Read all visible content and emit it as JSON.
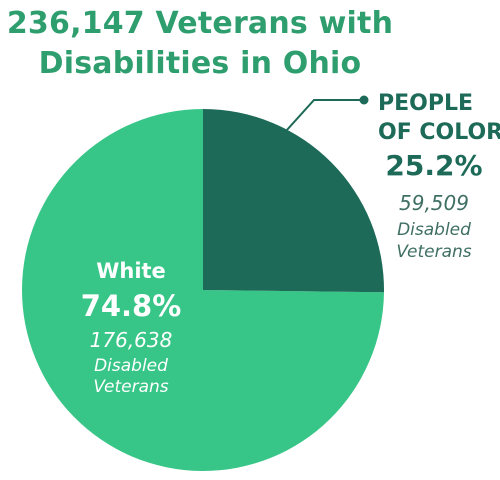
{
  "title_line1": "236,147 Veterans with",
  "title_line2": "Disabilities in Ohio",
  "colors": {
    "title": "#2e9e6e",
    "white_slice": "#37c687",
    "poc_slice": "#1c6a57",
    "poc_text": "#1c6a57",
    "poc_subtext": "#3f6f63",
    "white_text": "#ffffff"
  },
  "chart_data": {
    "type": "pie",
    "title": "236,147 Veterans with Disabilities in Ohio",
    "slices": [
      {
        "name": "PEOPLE OF COLOR",
        "name_line1": "PEOPLE",
        "name_line2": "OF COLOR",
        "percent": 25.2,
        "percent_label": "25.2%",
        "count": 59509,
        "count_label": "59,509",
        "desc_line1": "Disabled",
        "desc_line2": "Veterans"
      },
      {
        "name": "White",
        "percent": 74.8,
        "percent_label": "74.8%",
        "count": 176638,
        "count_label": "176,638",
        "desc_line1": "Disabled",
        "desc_line2": "Veterans"
      }
    ]
  }
}
